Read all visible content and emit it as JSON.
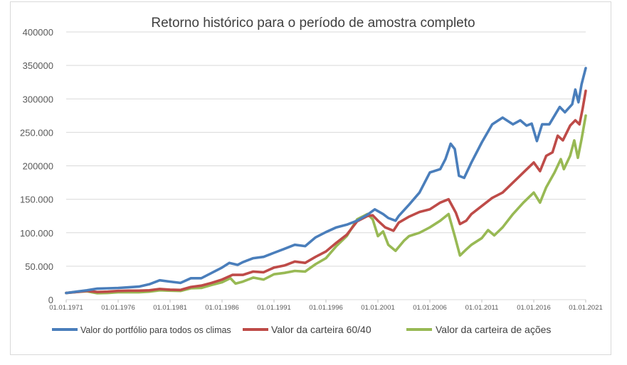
{
  "chart_data": {
    "type": "line",
    "title": "Retorno histórico para o período de amostra completo",
    "xlabel": "",
    "ylabel": "",
    "ylim": [
      0,
      400000
    ],
    "y_ticks": [
      0,
      50000,
      100000,
      150000,
      200000,
      250000,
      300000,
      350000,
      400000
    ],
    "y_tick_labels": [
      "0",
      "50.000",
      "100.000",
      "150.000",
      "200000",
      "250.000",
      "300000",
      "350000",
      "400000"
    ],
    "x_tick_labels": [
      "01.01.1971",
      "01.01.1976",
      "01.01.1981",
      "01.01.1986",
      "01.01.1991",
      "01.01.1996",
      "01.01.2001",
      "01.01.2006",
      "01.01.2011",
      "01.01.2016",
      "01.01.2021"
    ],
    "xlim": [
      1971,
      2021
    ],
    "grid": "horizontal",
    "legend_position": "bottom",
    "series": [
      {
        "name": "Valor do portfólio para todos os climas",
        "color": "#4a7ebb",
        "points": [
          [
            1971,
            10000
          ],
          [
            1972,
            12000
          ],
          [
            1973,
            14000
          ],
          [
            1974,
            16500
          ],
          [
            1975,
            17000
          ],
          [
            1976,
            17500
          ],
          [
            1977,
            18500
          ],
          [
            1978,
            19500
          ],
          [
            1979,
            23000
          ],
          [
            1980,
            29000
          ],
          [
            1981,
            27000
          ],
          [
            1982,
            25000
          ],
          [
            1983,
            32000
          ],
          [
            1984,
            32000
          ],
          [
            1985,
            40000
          ],
          [
            1986,
            48000
          ],
          [
            1986.7,
            55000
          ],
          [
            1987.5,
            52000
          ],
          [
            1988,
            56000
          ],
          [
            1989,
            62000
          ],
          [
            1990,
            64000
          ],
          [
            1991,
            70000
          ],
          [
            1992,
            76000
          ],
          [
            1993,
            82000
          ],
          [
            1994,
            80000
          ],
          [
            1995,
            93000
          ],
          [
            1996,
            101000
          ],
          [
            1997,
            108000
          ],
          [
            1998,
            112000
          ],
          [
            1999,
            118000
          ],
          [
            2000,
            127000
          ],
          [
            2000.7,
            135000
          ],
          [
            2001.5,
            128000
          ],
          [
            2002,
            122000
          ],
          [
            2002.7,
            118000
          ],
          [
            2003,
            125000
          ],
          [
            2004,
            142000
          ],
          [
            2005,
            160000
          ],
          [
            2006,
            190000
          ],
          [
            2007,
            195000
          ],
          [
            2007.5,
            210000
          ],
          [
            2008,
            233000
          ],
          [
            2008.4,
            225000
          ],
          [
            2008.8,
            185000
          ],
          [
            2009.3,
            182000
          ],
          [
            2010,
            205000
          ],
          [
            2011,
            235000
          ],
          [
            2012,
            262000
          ],
          [
            2013,
            272000
          ],
          [
            2014,
            262000
          ],
          [
            2014.7,
            268000
          ],
          [
            2015.3,
            260000
          ],
          [
            2015.8,
            263000
          ],
          [
            2016.3,
            237000
          ],
          [
            2016.8,
            262000
          ],
          [
            2017.5,
            262000
          ],
          [
            2018,
            275000
          ],
          [
            2018.5,
            288000
          ],
          [
            2019,
            280000
          ],
          [
            2019.7,
            292000
          ],
          [
            2020,
            314000
          ],
          [
            2020.3,
            295000
          ],
          [
            2020.6,
            322000
          ],
          [
            2021,
            346000
          ]
        ]
      },
      {
        "name": "Valor da carteira 60/40",
        "color": "#be4b48",
        "points": [
          [
            1971,
            10000
          ],
          [
            1972,
            11500
          ],
          [
            1973,
            13000
          ],
          [
            1974,
            11500
          ],
          [
            1975,
            12000
          ],
          [
            1976,
            13000
          ],
          [
            1977,
            13500
          ],
          [
            1978,
            13500
          ],
          [
            1979,
            14000
          ],
          [
            1980,
            16000
          ],
          [
            1981,
            15000
          ],
          [
            1982,
            14500
          ],
          [
            1983,
            19000
          ],
          [
            1984,
            21000
          ],
          [
            1985,
            25000
          ],
          [
            1986,
            30000
          ],
          [
            1987,
            37000
          ],
          [
            1988,
            37000
          ],
          [
            1989,
            42000
          ],
          [
            1990,
            41000
          ],
          [
            1991,
            48000
          ],
          [
            1992,
            51000
          ],
          [
            1993,
            57000
          ],
          [
            1994,
            55000
          ],
          [
            1995,
            64000
          ],
          [
            1996,
            72000
          ],
          [
            1997,
            85000
          ],
          [
            1998,
            97000
          ],
          [
            1999,
            117000
          ],
          [
            2000,
            125000
          ],
          [
            2000.5,
            126000
          ],
          [
            2001,
            118000
          ],
          [
            2001.7,
            108000
          ],
          [
            2002.5,
            103000
          ],
          [
            2003,
            115000
          ],
          [
            2004,
            124000
          ],
          [
            2005,
            131000
          ],
          [
            2006,
            135000
          ],
          [
            2007,
            145000
          ],
          [
            2007.8,
            150000
          ],
          [
            2008.5,
            130000
          ],
          [
            2008.9,
            113000
          ],
          [
            2009.5,
            118000
          ],
          [
            2010,
            128000
          ],
          [
            2011,
            140000
          ],
          [
            2012,
            152000
          ],
          [
            2013,
            160000
          ],
          [
            2014,
            175000
          ],
          [
            2015,
            190000
          ],
          [
            2016,
            205000
          ],
          [
            2016.6,
            192000
          ],
          [
            2017.2,
            215000
          ],
          [
            2017.8,
            220000
          ],
          [
            2018.3,
            245000
          ],
          [
            2018.8,
            238000
          ],
          [
            2019.5,
            260000
          ],
          [
            2020,
            268000
          ],
          [
            2020.4,
            262000
          ],
          [
            2020.7,
            285000
          ],
          [
            2021,
            312000
          ]
        ]
      },
      {
        "name": "Valor da carteira de ações",
        "color": "#98b954",
        "points": [
          [
            1971,
            10000
          ],
          [
            1972,
            11500
          ],
          [
            1973,
            12500
          ],
          [
            1974,
            9500
          ],
          [
            1975,
            10000
          ],
          [
            1976,
            11000
          ],
          [
            1977,
            11000
          ],
          [
            1978,
            11000
          ],
          [
            1979,
            12000
          ],
          [
            1980,
            14000
          ],
          [
            1981,
            13500
          ],
          [
            1982,
            13000
          ],
          [
            1983,
            17000
          ],
          [
            1984,
            17500
          ],
          [
            1985,
            22000
          ],
          [
            1986,
            26000
          ],
          [
            1986.8,
            32000
          ],
          [
            1987.3,
            24000
          ],
          [
            1988,
            27000
          ],
          [
            1989,
            33000
          ],
          [
            1990,
            30000
          ],
          [
            1991,
            38000
          ],
          [
            1992,
            40000
          ],
          [
            1993,
            43000
          ],
          [
            1994,
            42000
          ],
          [
            1995,
            53000
          ],
          [
            1996,
            62000
          ],
          [
            1997,
            80000
          ],
          [
            1998,
            95000
          ],
          [
            1999,
            120000
          ],
          [
            2000,
            128000
          ],
          [
            2000.5,
            120000
          ],
          [
            2001,
            95000
          ],
          [
            2001.5,
            102000
          ],
          [
            2002,
            82000
          ],
          [
            2002.7,
            73000
          ],
          [
            2003.5,
            88000
          ],
          [
            2004,
            95000
          ],
          [
            2005,
            100000
          ],
          [
            2006,
            108000
          ],
          [
            2007,
            118000
          ],
          [
            2007.8,
            128000
          ],
          [
            2008.4,
            95000
          ],
          [
            2008.9,
            66000
          ],
          [
            2009.5,
            75000
          ],
          [
            2010,
            82000
          ],
          [
            2011,
            92000
          ],
          [
            2011.6,
            104000
          ],
          [
            2012.2,
            96000
          ],
          [
            2013,
            108000
          ],
          [
            2014,
            128000
          ],
          [
            2015,
            145000
          ],
          [
            2016,
            160000
          ],
          [
            2016.6,
            145000
          ],
          [
            2017.2,
            168000
          ],
          [
            2018,
            190000
          ],
          [
            2018.6,
            210000
          ],
          [
            2018.9,
            195000
          ],
          [
            2019.5,
            215000
          ],
          [
            2019.9,
            238000
          ],
          [
            2020.25,
            212000
          ],
          [
            2020.6,
            240000
          ],
          [
            2021,
            275000
          ]
        ]
      }
    ]
  }
}
